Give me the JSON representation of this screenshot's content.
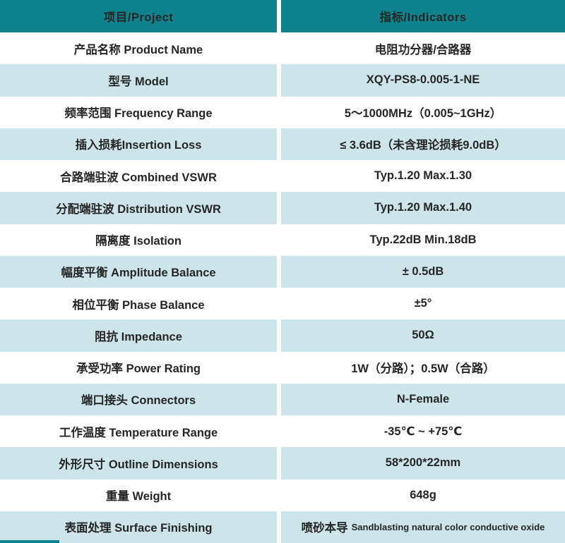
{
  "colors": {
    "header_teal": "#0e828c",
    "row_blue": "#cde5ea",
    "row_white": "#ffffff",
    "text_dark": "#262626",
    "header_text": "#ffffff"
  },
  "table": {
    "header": {
      "project": "项目/Project",
      "indicators": "指标/Indicators"
    },
    "rows": [
      {
        "project": "产品名称 Product Name",
        "indicator": "电阻功分器/合路器"
      },
      {
        "project": "型号 Model",
        "indicator": "XQY-PS8-0.005-1-NE"
      },
      {
        "project": "频率范围 Frequency Range",
        "indicator": "5～1000MHz（0.005~1GHz）"
      },
      {
        "project": "插入损耗Insertion Loss",
        "indicator": "≤ 3.6dB（未含理论损耗9.0dB）"
      },
      {
        "project": "合路端驻波 Combined VSWR",
        "indicator": "Typ.1.20 Max.1.30"
      },
      {
        "project": "分配端驻波 Distribution VSWR",
        "indicator": "Typ.1.20 Max.1.40"
      },
      {
        "project": "隔离度 Isolation",
        "indicator": "Typ.22dB Min.18dB"
      },
      {
        "project": "幅度平衡 Amplitude Balance",
        "indicator": "± 0.5dB"
      },
      {
        "project": "相位平衡 Phase Balance",
        "indicator": "±5°"
      },
      {
        "project": "阻抗 Impedance",
        "indicator": "50Ω"
      },
      {
        "project": "承受功率 Power Rating",
        "indicator": "1W（分路）；0.5W（合路）"
      },
      {
        "project": "端口接头 Connectors",
        "indicator": "N-Female"
      },
      {
        "project": "工作温度 Temperature Range",
        "indicator": "-35℃ ~ +75℃"
      },
      {
        "project": "外形尺寸 Outline Dimensions",
        "indicator": "58*200*22mm"
      },
      {
        "project": "重量 Weight",
        "indicator": "648g"
      },
      {
        "project": "表面处理 Surface Finishing",
        "indicator": "喷砂本导",
        "indicator_en": "Sandblasting natural color conductive oxide"
      }
    ]
  }
}
